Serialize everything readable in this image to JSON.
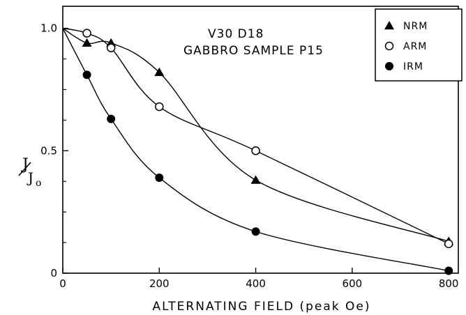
{
  "chart_data": {
    "type": "line",
    "annotations": [
      "V30  D18",
      "GABBRO  SAMPLE  P15"
    ],
    "xlabel": "ALTERNATING   FIELD  (peak  Oe)",
    "ylabel": {
      "main": "J",
      "sub": "J",
      "subscript": "o"
    },
    "xlim": [
      0,
      820
    ],
    "ylim": [
      0,
      1.09
    ],
    "x_ticks": [
      0,
      200,
      400,
      600,
      800
    ],
    "x_tick_labels": [
      "0",
      "200",
      "400",
      "600",
      "800"
    ],
    "y_ticks": [
      0,
      0.5,
      1.0
    ],
    "y_tick_labels": [
      "0",
      "0.5",
      "1.0"
    ],
    "y_minor_ticks": [
      0.125,
      0.25,
      0.375,
      0.625,
      0.75,
      0.875
    ],
    "grid": false,
    "legend_position": "top-right",
    "series": [
      {
        "name": "NRM",
        "marker": "triangle",
        "x": [
          0,
          50,
          100,
          200,
          400,
          800
        ],
        "y": [
          1.0,
          0.94,
          0.94,
          0.82,
          0.38,
          0.13
        ]
      },
      {
        "name": "ARM",
        "marker": "open-circle",
        "x": [
          0,
          50,
          100,
          200,
          400,
          800
        ],
        "y": [
          1.0,
          0.98,
          0.92,
          0.68,
          0.5,
          0.12
        ]
      },
      {
        "name": "IRM",
        "marker": "filled-circle",
        "x": [
          0,
          50,
          100,
          200,
          400,
          800
        ],
        "y": [
          1.0,
          0.81,
          0.63,
          0.39,
          0.17,
          0.01
        ]
      }
    ]
  }
}
